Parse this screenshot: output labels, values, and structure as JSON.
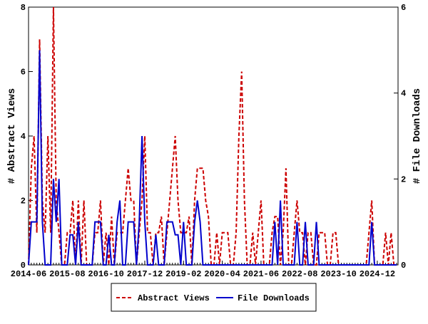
{
  "chart_data": {
    "type": "line",
    "x": [
      "2014-06",
      "2014-07",
      "2014-08",
      "2014-09",
      "2014-10",
      "2014-11",
      "2014-12",
      "2015-01",
      "2015-02",
      "2015-03",
      "2015-04",
      "2015-05",
      "2015-06",
      "2015-07",
      "2015-08",
      "2015-09",
      "2015-10",
      "2015-11",
      "2015-12",
      "2016-01",
      "2016-02",
      "2016-03",
      "2016-04",
      "2016-05",
      "2016-06",
      "2016-07",
      "2016-08",
      "2016-09",
      "2016-10",
      "2016-11",
      "2016-12",
      "2017-01",
      "2017-02",
      "2017-03",
      "2017-04",
      "2017-05",
      "2017-06",
      "2017-07",
      "2017-08",
      "2017-09",
      "2017-10",
      "2017-11",
      "2017-12",
      "2018-01",
      "2018-02",
      "2018-03",
      "2018-04",
      "2018-05",
      "2018-06",
      "2018-07",
      "2018-08",
      "2018-09",
      "2018-10",
      "2018-11",
      "2018-12",
      "2019-01",
      "2019-02",
      "2019-03",
      "2019-04",
      "2019-05",
      "2019-06",
      "2019-07",
      "2019-08",
      "2019-09",
      "2019-10",
      "2019-11",
      "2019-12",
      "2020-01",
      "2020-02",
      "2020-03",
      "2020-04",
      "2020-05",
      "2020-06",
      "2020-07",
      "2020-08",
      "2020-09",
      "2020-10",
      "2020-11",
      "2020-12",
      "2021-01",
      "2021-02",
      "2021-03",
      "2021-04",
      "2021-05",
      "2021-06",
      "2021-07",
      "2021-08",
      "2021-09",
      "2021-10",
      "2021-11",
      "2021-12",
      "2022-01",
      "2022-02",
      "2022-03",
      "2022-04",
      "2022-05",
      "2022-06",
      "2022-07",
      "2022-08",
      "2022-09",
      "2022-10",
      "2022-11",
      "2022-12",
      "2023-01",
      "2023-02",
      "2023-03",
      "2023-04",
      "2023-05",
      "2023-06",
      "2023-07",
      "2023-08",
      "2023-09",
      "2023-10",
      "2023-11",
      "2023-12",
      "2024-01",
      "2024-02",
      "2024-03",
      "2024-04",
      "2024-05",
      "2024-06",
      "2024-07",
      "2024-08",
      "2024-09",
      "2024-10",
      "2024-11",
      "2024-12",
      "2025-01",
      "2025-02",
      "2025-03",
      "2025-04",
      "2025-05",
      "2025-06",
      "2025-07"
    ],
    "xticks": [
      "2014-06",
      "2015-08",
      "2016-10",
      "2017-12",
      "2019-02",
      "2020-04",
      "2021-06",
      "2022-08",
      "2023-10",
      "2024-12"
    ],
    "ylabel": "# Abstract Views",
    "y2label": "# File Downloads",
    "ylim": [
      0,
      8
    ],
    "yticks": [
      0,
      2,
      4,
      6,
      8
    ],
    "y2lim": [
      0,
      6
    ],
    "y2ticks": [
      0,
      2,
      4,
      6
    ],
    "series": [
      {
        "name": "Abstract Views",
        "color": "#cc0000",
        "values": [
          0,
          3,
          4,
          1,
          7,
          2,
          1,
          4,
          1,
          8,
          2,
          1,
          0,
          0,
          1,
          1,
          2,
          0,
          2,
          0,
          2,
          0,
          0,
          0,
          1,
          1,
          2,
          0,
          1,
          0,
          1.5,
          0,
          1,
          1,
          1,
          2,
          3,
          2,
          2,
          0,
          1,
          2,
          4,
          1,
          1,
          0,
          1,
          1,
          1.5,
          0,
          1,
          2,
          3,
          4,
          2,
          1,
          1,
          1,
          1.5,
          0,
          2,
          3,
          3,
          3,
          2,
          1.5,
          0,
          0,
          1,
          0,
          1,
          1,
          1,
          0,
          0,
          1,
          4,
          6,
          2,
          0,
          0,
          1,
          0,
          1,
          2,
          0,
          0,
          0,
          1,
          1.5,
          1.5,
          0,
          1,
          3,
          0,
          0,
          1,
          2,
          1,
          1,
          0,
          1,
          1,
          0,
          0,
          1,
          1,
          1,
          0,
          0,
          1,
          1,
          0,
          0,
          0,
          0,
          0,
          0,
          0,
          0,
          0,
          0,
          0,
          1,
          2,
          0,
          0,
          0,
          0,
          1,
          0,
          1,
          0,
          0
        ]
      },
      {
        "name": "File Downloads",
        "color": "#0000cc",
        "axis": "y2",
        "values": [
          0,
          1,
          1,
          1,
          5,
          1,
          0,
          0,
          0,
          2,
          1,
          2,
          0,
          0,
          0,
          0.7,
          0.7,
          0,
          1,
          0,
          0,
          0,
          0,
          0,
          1,
          1,
          1,
          0,
          0,
          0.7,
          0,
          0,
          1,
          1.5,
          0,
          0,
          1,
          1,
          1,
          0,
          1,
          3,
          1,
          0,
          0,
          0,
          0.7,
          0,
          0,
          0,
          1,
          1,
          1,
          0.7,
          0.7,
          0,
          1,
          0,
          0,
          0,
          1,
          1.5,
          1,
          0,
          0,
          0,
          0,
          0,
          0,
          0,
          0,
          0,
          0,
          0,
          0,
          0,
          0,
          0,
          0,
          0,
          0,
          0,
          0,
          0,
          0,
          0,
          0,
          0,
          0,
          1,
          0,
          1.5,
          0,
          0,
          0,
          0,
          0,
          1,
          0,
          0,
          1,
          0,
          0,
          0,
          1,
          0,
          0,
          0,
          0,
          0,
          0,
          0,
          0,
          0,
          0,
          0,
          0,
          0,
          0,
          0,
          0,
          0,
          0,
          0,
          1,
          0,
          0,
          0,
          0,
          0,
          0,
          0,
          0,
          0
        ]
      }
    ]
  }
}
